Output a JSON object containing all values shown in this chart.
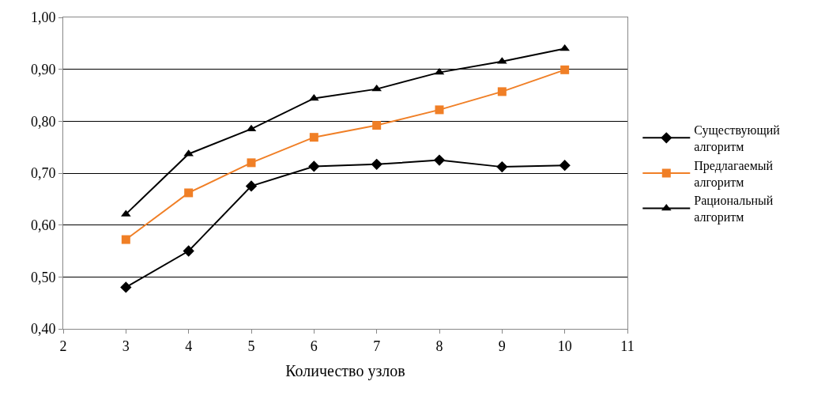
{
  "chart_data": {
    "type": "line",
    "xlabel": "Количество узлов",
    "x": [
      3,
      4,
      5,
      6,
      7,
      8,
      9,
      10
    ],
    "series": [
      {
        "name": "Существующий алгоритм",
        "color": "#000000",
        "marker": "diamond",
        "values": [
          0.48,
          0.55,
          0.675,
          0.713,
          0.717,
          0.725,
          0.712,
          0.715
        ]
      },
      {
        "name": "Предлагаемый алгоритм",
        "color": "#f07f26",
        "marker": "square",
        "values": [
          0.572,
          0.662,
          0.72,
          0.769,
          0.792,
          0.822,
          0.857,
          0.899
        ]
      },
      {
        "name": "Рациональный алгоритм",
        "color": "#000000",
        "marker": "triangle",
        "values": [
          0.621,
          0.737,
          0.785,
          0.844,
          0.862,
          0.894,
          0.915,
          0.94
        ]
      }
    ],
    "xlim": [
      2,
      11
    ],
    "xticks": [
      2,
      3,
      4,
      5,
      6,
      7,
      8,
      9,
      10,
      11
    ],
    "ylim": [
      0.4,
      1.0
    ],
    "yticks": [
      {
        "value": 0.4,
        "label": "0,40"
      },
      {
        "value": 0.5,
        "label": "0,50"
      },
      {
        "value": 0.6,
        "label": "0,60"
      },
      {
        "value": 0.7,
        "label": "0,70"
      },
      {
        "value": 0.8,
        "label": "0,80"
      },
      {
        "value": 0.9,
        "label": "0,90"
      },
      {
        "value": 1.0,
        "label": "1,00"
      }
    ],
    "grid": "y",
    "legend": "right",
    "line_style": "solid"
  }
}
